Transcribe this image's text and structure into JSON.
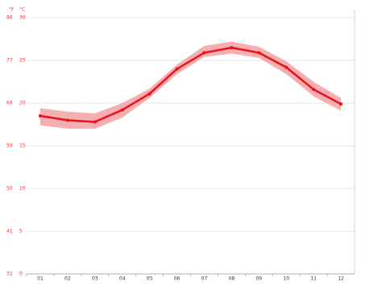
{
  "chart_data": {
    "type": "line",
    "y2_label": "°F",
    "y_label": "°C",
    "categories": [
      "01",
      "02",
      "03",
      "04",
      "05",
      "06",
      "07",
      "08",
      "09",
      "10",
      "11",
      "12"
    ],
    "values": [
      18.5,
      18.0,
      17.8,
      19.2,
      21.1,
      24.0,
      25.9,
      26.5,
      25.9,
      24.2,
      21.6,
      19.9
    ],
    "max": [
      19.4,
      19.0,
      18.8,
      20.0,
      21.7,
      24.5,
      26.7,
      27.2,
      26.6,
      24.9,
      22.5,
      20.6
    ],
    "min": [
      17.4,
      17.0,
      17.0,
      18.3,
      20.6,
      23.4,
      25.4,
      25.8,
      25.3,
      23.4,
      20.8,
      19.1
    ],
    "color": "#e8141c",
    "band_color": "#f4a6a8",
    "ylim": [
      0,
      30
    ],
    "yticks": [
      0,
      5,
      10,
      15,
      20,
      25,
      30
    ],
    "y2lim": [
      32,
      86
    ],
    "y2ticks": [
      32,
      41,
      50,
      59,
      68,
      77,
      86
    ],
    "grid": true
  }
}
